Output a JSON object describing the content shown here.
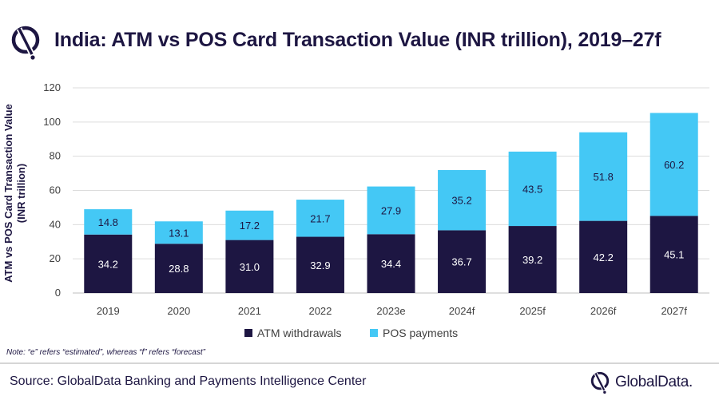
{
  "header": {
    "title": "India: ATM vs POS Card Transaction Value (INR trillion), 2019–27f"
  },
  "footer": {
    "note": "Note: “e” refers “estimated”, whereas “f” refers “forecast”",
    "source": "Source: GlobalData Banking and Payments Intelligence Center",
    "brand": "GlobalData."
  },
  "colors": {
    "atm": "#1d1642",
    "pos": "#44c8f5",
    "title": "#1d1642"
  },
  "chart_data": {
    "type": "bar",
    "stacked": true,
    "title": "India: ATM vs POS Card Transaction Value (INR trillion), 2019–27f",
    "xlabel": "",
    "ylabel": "ATM vs POS Card Transaction Value (INR trillion)",
    "ylim": [
      0,
      120
    ],
    "yticks": [
      0,
      20,
      40,
      60,
      80,
      100,
      120
    ],
    "grid": true,
    "legend_position": "bottom",
    "categories": [
      "2019",
      "2020",
      "2021",
      "2022",
      "2023e",
      "2024f",
      "2025f",
      "2026f",
      "2027f"
    ],
    "series": [
      {
        "name": "ATM withdrawals",
        "values": [
          34.2,
          28.8,
          31.0,
          32.9,
          34.4,
          36.7,
          39.2,
          42.2,
          45.1
        ]
      },
      {
        "name": "POS payments",
        "values": [
          14.8,
          13.1,
          17.2,
          21.7,
          27.9,
          35.2,
          43.5,
          51.8,
          60.2
        ]
      }
    ]
  }
}
